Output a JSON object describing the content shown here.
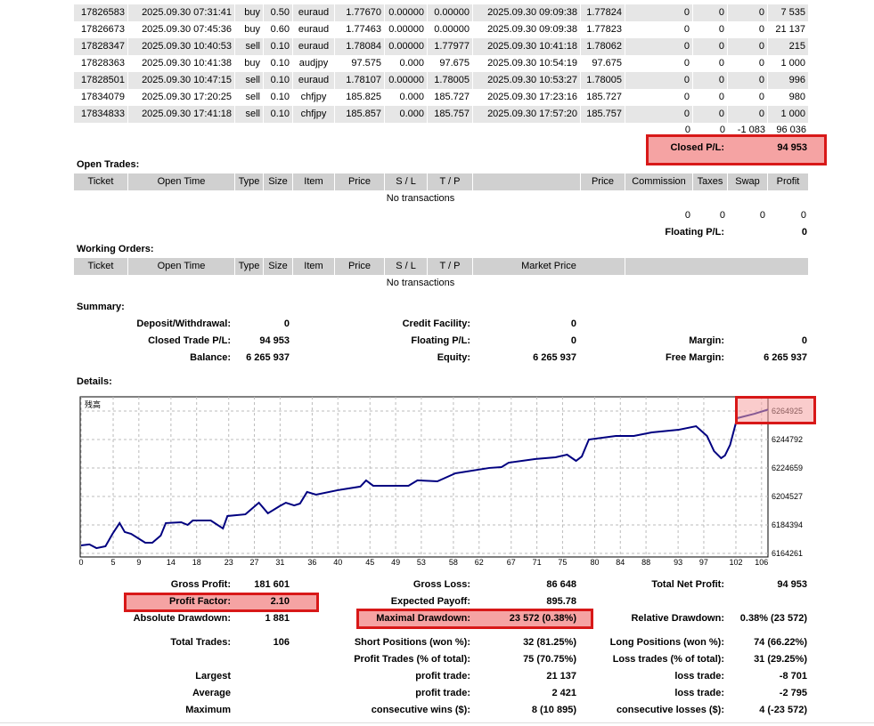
{
  "closed_trades": {
    "rows": [
      [
        "17826583",
        "2025.09.30 07:31:41",
        "buy",
        "0.50",
        "euraud",
        "1.77670",
        "0.00000",
        "0.00000",
        "2025.09.30 09:09:38",
        "1.77824",
        "0",
        "0",
        "0",
        "7 535"
      ],
      [
        "17826673",
        "2025.09.30 07:45:36",
        "buy",
        "0.60",
        "euraud",
        "1.77463",
        "0.00000",
        "0.00000",
        "2025.09.30 09:09:38",
        "1.77823",
        "0",
        "0",
        "0",
        "21 137"
      ],
      [
        "17828347",
        "2025.09.30 10:40:53",
        "sell",
        "0.10",
        "euraud",
        "1.78084",
        "0.00000",
        "1.77977",
        "2025.09.30 10:41:18",
        "1.78062",
        "0",
        "0",
        "0",
        "215"
      ],
      [
        "17828363",
        "2025.09.30 10:41:38",
        "buy",
        "0.10",
        "audjpy",
        "97.575",
        "0.000",
        "97.675",
        "2025.09.30 10:54:19",
        "97.675",
        "0",
        "0",
        "0",
        "1 000"
      ],
      [
        "17828501",
        "2025.09.30 10:47:15",
        "sell",
        "0.10",
        "euraud",
        "1.78107",
        "0.00000",
        "1.78005",
        "2025.09.30 10:53:27",
        "1.78005",
        "0",
        "0",
        "0",
        "996"
      ],
      [
        "17834079",
        "2025.09.30 17:20:25",
        "sell",
        "0.10",
        "chfjpy",
        "185.825",
        "0.000",
        "185.727",
        "2025.09.30 17:23:16",
        "185.727",
        "0",
        "0",
        "0",
        "980"
      ],
      [
        "17834833",
        "2025.09.30 17:41:18",
        "sell",
        "0.10",
        "chfjpy",
        "185.857",
        "0.000",
        "185.757",
        "2025.09.30 17:57:20",
        "185.757",
        "0",
        "0",
        "0",
        "1 000"
      ]
    ],
    "totals": [
      "0",
      "0",
      "-1 083",
      "96 036"
    ],
    "pl_label": "Closed P/L:",
    "pl_value": "94 953"
  },
  "open_trades": {
    "title": "Open Trades:",
    "headers": [
      "Ticket",
      "Open Time",
      "Type",
      "Size",
      "Item",
      "Price",
      "S / L",
      "T / P",
      "Price",
      "Commission",
      "Taxes",
      "Swap",
      "Profit"
    ],
    "empty": "No transactions",
    "totals": [
      "0",
      "0",
      "0",
      "0"
    ],
    "pl_label": "Floating P/L:",
    "pl_value": "0"
  },
  "working_orders": {
    "title": "Working Orders:",
    "headers": [
      "Ticket",
      "Open Time",
      "Type",
      "Size",
      "Item",
      "Price",
      "S / L",
      "T / P",
      "Market Price"
    ],
    "empty": "No transactions"
  },
  "summary": {
    "title": "Summary:",
    "rows": [
      [
        "Deposit/Withdrawal:",
        "0",
        "Credit Facility:",
        "0",
        null,
        null
      ],
      [
        "Closed Trade P/L:",
        "94 953",
        "Floating P/L:",
        "0",
        "Margin:",
        "0"
      ],
      [
        "Balance:",
        "6 265 937",
        "Equity:",
        "6 265 937",
        "Free Margin:",
        "6 265 937"
      ]
    ]
  },
  "details": {
    "title": "Details:"
  },
  "chart_data": {
    "type": "line",
    "series": [
      {
        "name": "残高",
        "color": "#000080",
        "values": [
          6169900,
          6170600,
          6168000,
          6169300,
          6178100,
          6185700,
          6179400,
          6178100,
          6171800,
          6171800,
          6176800,
          6185700,
          6186300,
          6184400,
          6187500,
          6187500,
          6181900,
          6190700,
          6191900,
          6200100,
          6192600,
          6197600,
          6200100,
          6198200,
          6199500,
          6207700,
          6205800,
          6208900,
          6211500,
          6215900,
          6212100,
          6212100,
          6212100,
          6215900,
          6215200,
          6220900,
          6224700,
          6225300,
          6228400,
          6231000,
          6232200,
          6234100,
          6229700,
          6232800,
          6244800,
          6247300,
          6247300,
          6249800,
          6251700,
          6254200,
          6247300,
          6236600,
          6231600,
          6233500,
          6241000,
          6259900,
          6263000,
          6265937
        ]
      }
    ],
    "x": [
      0,
      1.3,
      2.4,
      3.8,
      4.9,
      6.0,
      6.8,
      7.8,
      10.0,
      11.1,
      12.4,
      13.2,
      15.6,
      16.6,
      17.4,
      20.2,
      22.1,
      22.8,
      25.6,
      27.7,
      29.1,
      30.9,
      31.9,
      33.2,
      34.1,
      35.2,
      36.6,
      39.9,
      43.5,
      44.4,
      45.5,
      48.5,
      51.0,
      52.4,
      55.5,
      58.3,
      63.6,
      65.5,
      66.6,
      70.8,
      73.9,
      75.7,
      77.1,
      78.0,
      79.1,
      83.3,
      86.1,
      88.9,
      93.1,
      95.8,
      97.5,
      98.6,
      99.7,
      100.3,
      101.1,
      102.2,
      104.9,
      107
    ],
    "xlim": [
      0,
      107
    ],
    "xticks": [
      0,
      5,
      9,
      14,
      18,
      23,
      27,
      31,
      36,
      40,
      45,
      49,
      53,
      58,
      62,
      67,
      71,
      75,
      80,
      84,
      88,
      93,
      97,
      102,
      106
    ],
    "ylim": [
      6161744,
      6274991
    ],
    "yticks": [
      6264925,
      6244792,
      6224659,
      6204527,
      6184394,
      6164261
    ],
    "grid": true
  },
  "stats": {
    "rows": [
      [
        "Gross Profit:",
        "181 601",
        "Gross Loss:",
        "86 648",
        "Total Net Profit:",
        "94 953"
      ],
      [
        "Profit Factor:",
        "2.10",
        "Expected Payoff:",
        "895.78",
        null,
        null
      ],
      [
        "Absolute Drawdown:",
        "1 881",
        "Maximal Drawdown:",
        "23 572 (0.38%)",
        "Relative Drawdown:",
        "0.38% (23 572)"
      ],
      [
        "Total Trades:",
        "106",
        "Short Positions (won %):",
        "32 (81.25%)",
        "Long Positions (won %):",
        "74 (66.22%)"
      ],
      [
        null,
        null,
        "Profit Trades (% of total):",
        "75 (70.75%)",
        "Loss trades (% of total):",
        "31 (29.25%)"
      ],
      [
        "Largest",
        null,
        "profit trade:",
        "21 137",
        "loss trade:",
        "-8 701"
      ],
      [
        "Average",
        null,
        "profit trade:",
        "2 421",
        "loss trade:",
        "-2 795"
      ],
      [
        "Maximum",
        null,
        "consecutive wins ($):",
        "8 (10 895)",
        "consecutive losses ($):",
        "4 (-23 572)"
      ]
    ]
  }
}
